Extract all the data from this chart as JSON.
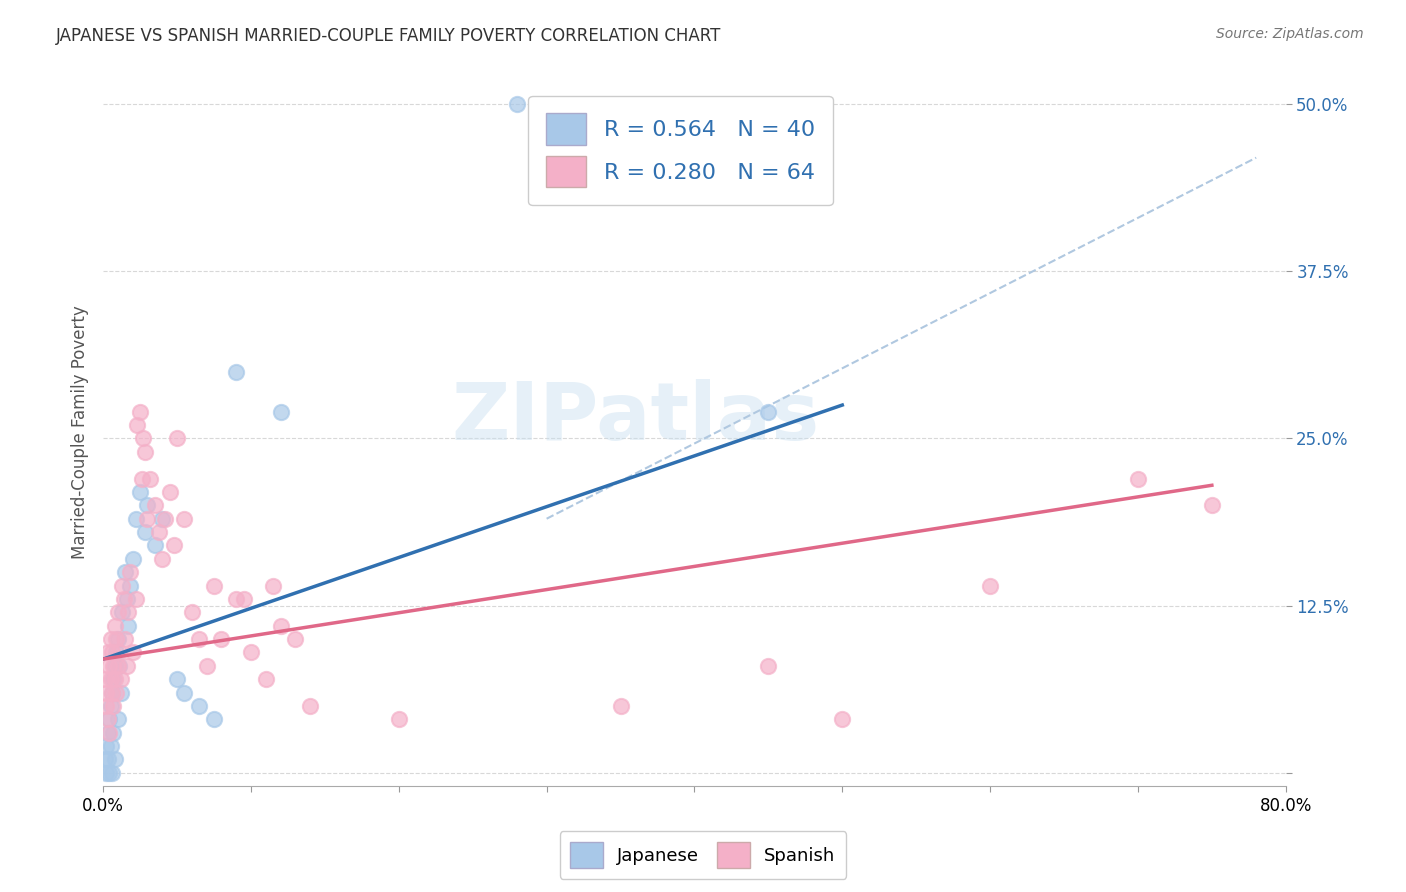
{
  "title": "JAPANESE VS SPANISH MARRIED-COUPLE FAMILY POVERTY CORRELATION CHART",
  "source": "Source: ZipAtlas.com",
  "ylabel": "Married-Couple Family Poverty",
  "xlim": [
    0,
    0.8
  ],
  "ylim": [
    -0.01,
    0.52
  ],
  "legend_japanese_R": "0.564",
  "legend_japanese_N": "40",
  "legend_spanish_R": "0.280",
  "legend_spanish_N": "64",
  "japanese_color": "#a8c8e8",
  "spanish_color": "#f4b0c8",
  "japanese_line_color": "#3070b0",
  "spanish_line_color": "#e06888",
  "diag_line_color": "#b0c8e0",
  "watermark": "ZIPatlas",
  "jp_line": [
    [
      0.0,
      0.085
    ],
    [
      0.5,
      0.275
    ]
  ],
  "sp_line": [
    [
      0.0,
      0.085
    ],
    [
      0.75,
      0.215
    ]
  ],
  "diag_line": [
    [
      0.3,
      0.19
    ],
    [
      0.78,
      0.46
    ]
  ],
  "japanese_points": [
    [
      0.001,
      0.01
    ],
    [
      0.002,
      0.02
    ],
    [
      0.002,
      0.0
    ],
    [
      0.003,
      0.03
    ],
    [
      0.003,
      0.01
    ],
    [
      0.004,
      0.04
    ],
    [
      0.004,
      0.0
    ],
    [
      0.005,
      0.05
    ],
    [
      0.005,
      0.02
    ],
    [
      0.006,
      0.06
    ],
    [
      0.006,
      0.0
    ],
    [
      0.007,
      0.07
    ],
    [
      0.007,
      0.03
    ],
    [
      0.008,
      0.08
    ],
    [
      0.008,
      0.01
    ],
    [
      0.009,
      0.09
    ],
    [
      0.01,
      0.1
    ],
    [
      0.01,
      0.04
    ],
    [
      0.011,
      0.08
    ],
    [
      0.012,
      0.06
    ],
    [
      0.013,
      0.12
    ],
    [
      0.015,
      0.15
    ],
    [
      0.016,
      0.13
    ],
    [
      0.017,
      0.11
    ],
    [
      0.018,
      0.14
    ],
    [
      0.02,
      0.16
    ],
    [
      0.022,
      0.19
    ],
    [
      0.025,
      0.21
    ],
    [
      0.028,
      0.18
    ],
    [
      0.03,
      0.2
    ],
    [
      0.035,
      0.17
    ],
    [
      0.04,
      0.19
    ],
    [
      0.05,
      0.07
    ],
    [
      0.055,
      0.06
    ],
    [
      0.065,
      0.05
    ],
    [
      0.075,
      0.04
    ],
    [
      0.09,
      0.3
    ],
    [
      0.12,
      0.27
    ],
    [
      0.45,
      0.27
    ],
    [
      0.28,
      0.5
    ]
  ],
  "spanish_points": [
    [
      0.001,
      0.07
    ],
    [
      0.002,
      0.06
    ],
    [
      0.002,
      0.05
    ],
    [
      0.003,
      0.09
    ],
    [
      0.003,
      0.04
    ],
    [
      0.004,
      0.08
    ],
    [
      0.004,
      0.03
    ],
    [
      0.005,
      0.1
    ],
    [
      0.005,
      0.07
    ],
    [
      0.006,
      0.09
    ],
    [
      0.006,
      0.06
    ],
    [
      0.007,
      0.08
    ],
    [
      0.007,
      0.05
    ],
    [
      0.008,
      0.11
    ],
    [
      0.008,
      0.07
    ],
    [
      0.009,
      0.1
    ],
    [
      0.009,
      0.06
    ],
    [
      0.01,
      0.12
    ],
    [
      0.01,
      0.08
    ],
    [
      0.011,
      0.09
    ],
    [
      0.012,
      0.07
    ],
    [
      0.013,
      0.14
    ],
    [
      0.014,
      0.13
    ],
    [
      0.015,
      0.1
    ],
    [
      0.016,
      0.08
    ],
    [
      0.017,
      0.12
    ],
    [
      0.018,
      0.15
    ],
    [
      0.02,
      0.09
    ],
    [
      0.022,
      0.13
    ],
    [
      0.023,
      0.26
    ],
    [
      0.025,
      0.27
    ],
    [
      0.026,
      0.22
    ],
    [
      0.027,
      0.25
    ],
    [
      0.028,
      0.24
    ],
    [
      0.03,
      0.19
    ],
    [
      0.032,
      0.22
    ],
    [
      0.035,
      0.2
    ],
    [
      0.038,
      0.18
    ],
    [
      0.04,
      0.16
    ],
    [
      0.042,
      0.19
    ],
    [
      0.045,
      0.21
    ],
    [
      0.048,
      0.17
    ],
    [
      0.05,
      0.25
    ],
    [
      0.055,
      0.19
    ],
    [
      0.06,
      0.12
    ],
    [
      0.065,
      0.1
    ],
    [
      0.07,
      0.08
    ],
    [
      0.075,
      0.14
    ],
    [
      0.08,
      0.1
    ],
    [
      0.09,
      0.13
    ],
    [
      0.095,
      0.13
    ],
    [
      0.1,
      0.09
    ],
    [
      0.11,
      0.07
    ],
    [
      0.115,
      0.14
    ],
    [
      0.12,
      0.11
    ],
    [
      0.13,
      0.1
    ],
    [
      0.14,
      0.05
    ],
    [
      0.2,
      0.04
    ],
    [
      0.35,
      0.05
    ],
    [
      0.45,
      0.08
    ],
    [
      0.5,
      0.04
    ],
    [
      0.6,
      0.14
    ],
    [
      0.7,
      0.22
    ],
    [
      0.75,
      0.2
    ]
  ]
}
